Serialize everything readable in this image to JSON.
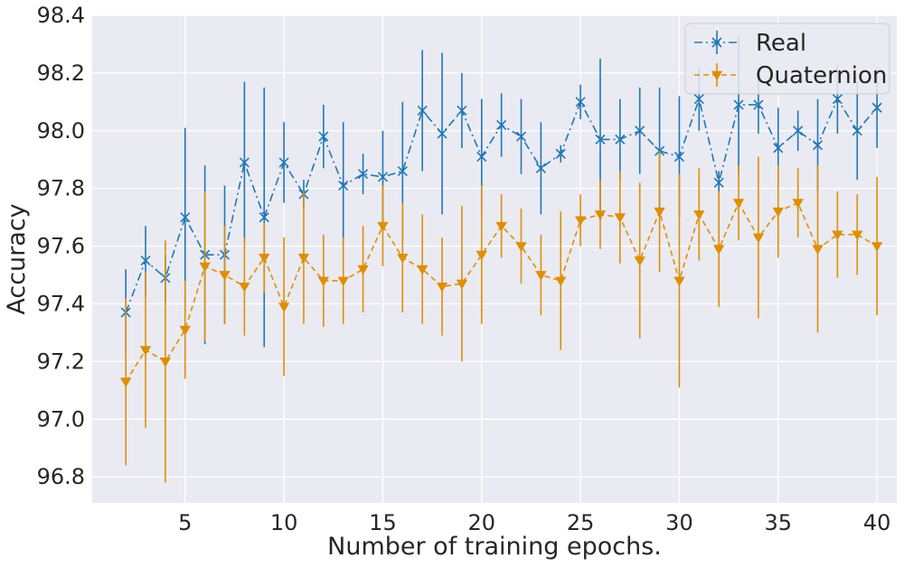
{
  "chart_data": {
    "type": "line",
    "title": "",
    "xlabel": "Number of training epochs.",
    "ylabel": "Accuracy",
    "xlim": [
      0.3,
      41.0
    ],
    "ylim": [
      96.71,
      98.4
    ],
    "xticks": [
      5,
      10,
      15,
      20,
      25,
      30,
      35,
      40
    ],
    "xtick_labels": [
      "5",
      "10",
      "15",
      "20",
      "25",
      "30",
      "35",
      "40"
    ],
    "yticks": [
      96.8,
      97.0,
      97.2,
      97.4,
      97.6,
      97.8,
      98.0,
      98.2,
      98.4
    ],
    "ytick_labels": [
      "96.8",
      "97.0",
      "97.2",
      "97.4",
      "97.6",
      "97.8",
      "98.0",
      "98.2",
      "98.4"
    ],
    "grid": true,
    "legend_position": "top-right",
    "x": [
      2,
      3,
      4,
      5,
      6,
      7,
      8,
      9,
      10,
      11,
      12,
      13,
      14,
      15,
      16,
      17,
      18,
      19,
      20,
      21,
      22,
      23,
      24,
      25,
      26,
      27,
      28,
      29,
      30,
      31,
      32,
      33,
      34,
      35,
      36,
      37,
      38,
      39,
      40
    ],
    "series": [
      {
        "name": "Real",
        "color": "#1f77b4",
        "marker": "x",
        "linestyle": "dashdot",
        "values": [
          97.37,
          97.55,
          97.49,
          97.7,
          97.57,
          97.57,
          97.89,
          97.7,
          97.89,
          97.78,
          97.98,
          97.81,
          97.85,
          97.84,
          97.86,
          98.07,
          97.99,
          98.07,
          97.91,
          98.02,
          97.98,
          97.87,
          97.92,
          98.1,
          97.97,
          97.97,
          98.0,
          97.93,
          97.91,
          98.11,
          97.82,
          98.09,
          98.09,
          97.94,
          98.0,
          97.95,
          98.11,
          98.0,
          98.08
        ],
        "errors": [
          0.15,
          0.12,
          0.08,
          0.31,
          0.31,
          0.24,
          0.28,
          0.45,
          0.14,
          0.05,
          0.11,
          0.22,
          0.07,
          0.16,
          0.24,
          0.21,
          0.28,
          0.13,
          0.2,
          0.11,
          0.13,
          0.16,
          0.03,
          0.06,
          0.28,
          0.14,
          0.15,
          0.22,
          0.21,
          0.11,
          0.04,
          0.24,
          0.1,
          0.14,
          0.07,
          0.16,
          0.12,
          0.17,
          0.14
        ]
      },
      {
        "name": "Quaternion",
        "color": "#de8f05",
        "marker": "v",
        "linestyle": "dashed",
        "values": [
          97.13,
          97.24,
          97.2,
          97.31,
          97.53,
          97.5,
          97.46,
          97.56,
          97.39,
          97.56,
          97.48,
          97.48,
          97.52,
          97.67,
          97.56,
          97.52,
          97.46,
          97.47,
          97.57,
          97.67,
          97.6,
          97.5,
          97.48,
          97.69,
          97.71,
          97.7,
          97.55,
          97.72,
          97.48,
          97.71,
          97.59,
          97.75,
          97.63,
          97.72,
          97.75,
          97.59,
          97.64,
          97.64,
          97.6
        ],
        "errors": [
          0.29,
          0.27,
          0.42,
          0.17,
          0.26,
          0.17,
          0.17,
          0.12,
          0.24,
          0.23,
          0.16,
          0.15,
          0.15,
          0.14,
          0.19,
          0.19,
          0.17,
          0.27,
          0.24,
          0.11,
          0.13,
          0.14,
          0.24,
          0.09,
          0.12,
          0.16,
          0.27,
          0.21,
          0.37,
          0.16,
          0.2,
          0.13,
          0.28,
          0.16,
          0.12,
          0.29,
          0.15,
          0.14,
          0.24
        ]
      }
    ]
  }
}
